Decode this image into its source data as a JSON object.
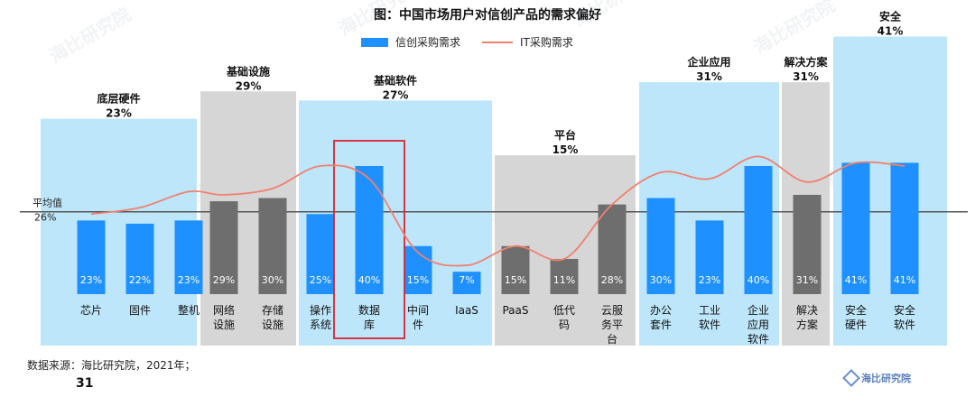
{
  "title": "图：中国市场用户对信创产品的需求偏好",
  "legend": {
    "bar": "信创采购需求",
    "line": "IT采购需求"
  },
  "source": "数据来源：海比研究院，2021年；",
  "page_number": "31",
  "logo_text": "海比研究院",
  "watermark_text": "海比研究院",
  "colors": {
    "bar_blue": "#1E90FF",
    "bar_gray": "#6E6E6E",
    "panel_blue": "#BDE6FA",
    "panel_gray": "#D6D6D6",
    "line": "#F08070",
    "avg_line": "#555555",
    "highlight_box": "#D9232E"
  },
  "chart_data": {
    "type": "bar",
    "title": "图：中国市场用户对信创产品的需求偏好",
    "categories": [
      "芯片",
      "固件",
      "整机",
      "网络设施",
      "存储设施",
      "操作系统",
      "数据库",
      "中间件",
      "IaaS",
      "PaaS",
      "低代码",
      "云服务平台",
      "办公套件",
      "工业软件",
      "企业应用软件",
      "解决方案",
      "安全硬件",
      "安全软件"
    ],
    "category_lines": [
      [
        "芯片"
      ],
      [
        "固件"
      ],
      [
        "整机"
      ],
      [
        "网络",
        "设施"
      ],
      [
        "存储",
        "设施"
      ],
      [
        "操作",
        "系统"
      ],
      [
        "数据",
        "库"
      ],
      [
        "中间",
        "件"
      ],
      [
        "IaaS"
      ],
      [
        "PaaS"
      ],
      [
        "低代",
        "码"
      ],
      [
        "云服",
        "务平",
        "台"
      ],
      [
        "办公",
        "套件"
      ],
      [
        "工业",
        "软件"
      ],
      [
        "企业",
        "应用",
        "软件"
      ],
      [
        "解决",
        "方案"
      ],
      [
        "安全",
        "硬件"
      ],
      [
        "安全",
        "软件"
      ]
    ],
    "series": [
      {
        "name": "信创采购需求",
        "values": [
          23,
          22,
          23,
          29,
          30,
          25,
          40,
          15,
          7,
          15,
          11,
          28,
          30,
          23,
          40,
          31,
          41,
          41
        ],
        "labels": [
          "23%",
          "22%",
          "23%",
          "29%",
          "30%",
          "25%",
          "40%",
          "15%",
          "7%",
          "15%",
          "11%",
          "28%",
          "30%",
          "23%",
          "40%",
          "31%",
          "41%",
          "41%"
        ]
      },
      {
        "name": "IT采购需求",
        "type": "line",
        "values": [
          25,
          27,
          32,
          31,
          33,
          40,
          36,
          13,
          9,
          15,
          11,
          28,
          38,
          36,
          43,
          35,
          41,
          40
        ]
      }
    ],
    "groups": [
      {
        "name": "底层硬件",
        "value_label": "23%",
        "value": 23,
        "start": 0,
        "end": 2,
        "style": "blue"
      },
      {
        "name": "基础设施",
        "value_label": "29%",
        "value": 29,
        "start": 3,
        "end": 4,
        "style": "gray"
      },
      {
        "name": "基础软件",
        "value_label": "27%",
        "value": 27,
        "start": 5,
        "end": 8,
        "style": "blue"
      },
      {
        "name": "平台",
        "value_label": "15%",
        "value": 15,
        "start": 9,
        "end": 11,
        "style": "gray"
      },
      {
        "name": "企业应用",
        "value_label": "31%",
        "value": 31,
        "start": 12,
        "end": 14,
        "style": "blue"
      },
      {
        "name": "解决方案",
        "value_label": "31%",
        "value": 31,
        "start": 15,
        "end": 15,
        "style": "gray"
      },
      {
        "name": "安全",
        "value_label": "41%",
        "value": 41,
        "start": 16,
        "end": 17,
        "style": "blue"
      }
    ],
    "average": {
      "label": "平均值",
      "value_label": "26%",
      "value": 26
    },
    "highlight_category": "数据库",
    "ylim": [
      0,
      45
    ]
  }
}
